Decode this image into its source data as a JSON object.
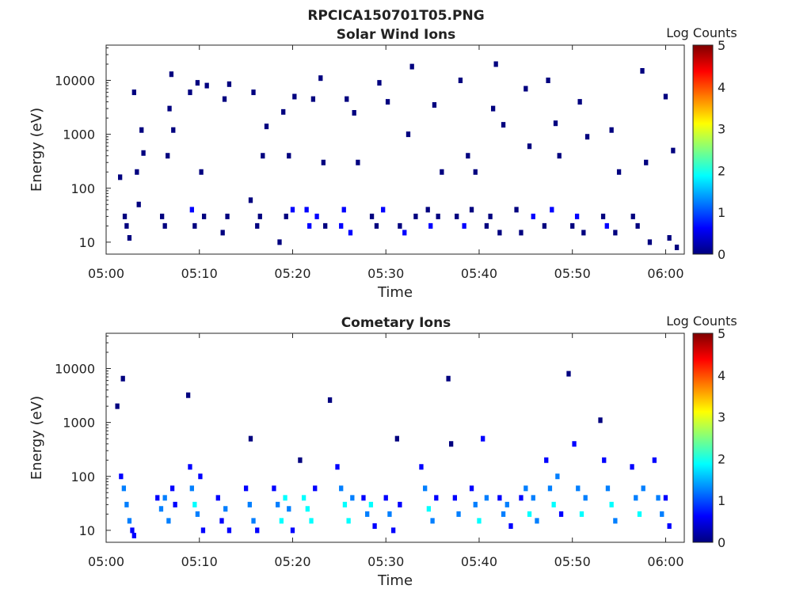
{
  "figure_title": "RPCICA150701T05.PNG",
  "colormap": [
    "#00007f",
    "#0000ff",
    "#007fff",
    "#00ffff",
    "#7fff7f",
    "#ffff00",
    "#ff7f00",
    "#ff0000",
    "#7f0000"
  ],
  "chart_data": [
    {
      "type": "heatmap",
      "title": "Solar Wind Ions",
      "xlabel": "Time",
      "ylabel": "Energy (eV)",
      "x_ticks": [
        "05:00",
        "05:10",
        "05:20",
        "05:30",
        "05:40",
        "05:50",
        "06:00"
      ],
      "x_range_minutes": [
        0,
        62
      ],
      "y_scale": "log",
      "y_ticks": [
        "10",
        "100",
        "1000",
        "10000"
      ],
      "ylim": [
        6,
        45000
      ],
      "colorbar_label": "Log Counts",
      "colorbar_ticks": [
        "0",
        "1",
        "2",
        "3",
        "4",
        "5"
      ],
      "zlim": [
        0,
        5
      ],
      "cells": [
        [
          1.5,
          160,
          0.1
        ],
        [
          2.0,
          30,
          0.2
        ],
        [
          2.2,
          20,
          0.1
        ],
        [
          2.5,
          12,
          0.1
        ],
        [
          3.0,
          6000,
          0.1
        ],
        [
          3.3,
          200,
          0.1
        ],
        [
          3.5,
          50,
          0.1
        ],
        [
          3.8,
          1200,
          0.1
        ],
        [
          4.0,
          450,
          0.1
        ],
        [
          6.0,
          30,
          0.3
        ],
        [
          6.3,
          20,
          0.2
        ],
        [
          6.6,
          400,
          0.1
        ],
        [
          6.8,
          3000,
          0.1
        ],
        [
          7.0,
          13000,
          0.1
        ],
        [
          7.2,
          1200,
          0.1
        ],
        [
          9.0,
          6000,
          0.1
        ],
        [
          9.2,
          40,
          0.4
        ],
        [
          9.5,
          20,
          0.3
        ],
        [
          9.8,
          9000,
          0.1
        ],
        [
          10.2,
          200,
          0.1
        ],
        [
          10.5,
          30,
          0.2
        ],
        [
          10.8,
          8000,
          0.1
        ],
        [
          12.5,
          15,
          0.2
        ],
        [
          12.7,
          4500,
          0.1
        ],
        [
          13.0,
          30,
          0.3
        ],
        [
          13.2,
          8500,
          0.1
        ],
        [
          15.5,
          60,
          0.1
        ],
        [
          15.8,
          6000,
          0.1
        ],
        [
          16.2,
          20,
          0.2
        ],
        [
          16.5,
          30,
          0.3
        ],
        [
          16.8,
          400,
          0.1
        ],
        [
          17.2,
          1400,
          0.1
        ],
        [
          18.6,
          10,
          0.2
        ],
        [
          19.0,
          2600,
          0.1
        ],
        [
          19.3,
          30,
          0.3
        ],
        [
          19.6,
          400,
          0.1
        ],
        [
          20.0,
          40,
          0.4
        ],
        [
          20.2,
          5000,
          0.1
        ],
        [
          21.5,
          40,
          0.5
        ],
        [
          21.8,
          20,
          0.4
        ],
        [
          22.2,
          4500,
          0.1
        ],
        [
          22.6,
          30,
          0.6
        ],
        [
          23.0,
          11000,
          0.1
        ],
        [
          23.3,
          300,
          0.1
        ],
        [
          23.5,
          20,
          0.3
        ],
        [
          25.2,
          20,
          0.5
        ],
        [
          25.5,
          40,
          0.6
        ],
        [
          25.8,
          4500,
          0.1
        ],
        [
          26.2,
          15,
          0.5
        ],
        [
          26.6,
          2500,
          0.1
        ],
        [
          27.0,
          300,
          0.1
        ],
        [
          28.5,
          30,
          0.2
        ],
        [
          29.0,
          20,
          0.2
        ],
        [
          29.3,
          9000,
          0.1
        ],
        [
          29.7,
          40,
          0.5
        ],
        [
          30.2,
          4000,
          0.1
        ],
        [
          31.5,
          20,
          0.3
        ],
        [
          32.0,
          15,
          0.4
        ],
        [
          32.4,
          1000,
          0.1
        ],
        [
          32.8,
          18000,
          0.1
        ],
        [
          33.2,
          30,
          0.2
        ],
        [
          34.5,
          40,
          0.3
        ],
        [
          34.8,
          20,
          0.4
        ],
        [
          35.2,
          3500,
          0.1
        ],
        [
          35.6,
          30,
          0.2
        ],
        [
          36.0,
          200,
          0.1
        ],
        [
          37.6,
          30,
          0.2
        ],
        [
          38.0,
          10000,
          0.1
        ],
        [
          38.4,
          20,
          0.4
        ],
        [
          38.8,
          400,
          0.1
        ],
        [
          39.2,
          40,
          0.3
        ],
        [
          39.6,
          200,
          0.1
        ],
        [
          40.8,
          20,
          0.2
        ],
        [
          41.2,
          30,
          0.3
        ],
        [
          41.5,
          3000,
          0.1
        ],
        [
          41.8,
          20000,
          0.1
        ],
        [
          42.2,
          15,
          0.2
        ],
        [
          42.6,
          1500,
          0.1
        ],
        [
          44.0,
          40,
          0.2
        ],
        [
          44.5,
          15,
          0.3
        ],
        [
          45.0,
          7000,
          0.1
        ],
        [
          45.4,
          600,
          0.1
        ],
        [
          45.8,
          30,
          0.4
        ],
        [
          47.0,
          20,
          0.3
        ],
        [
          47.4,
          10000,
          0.1
        ],
        [
          47.8,
          40,
          0.5
        ],
        [
          48.2,
          1600,
          0.1
        ],
        [
          48.6,
          400,
          0.1
        ],
        [
          50.0,
          20,
          0.3
        ],
        [
          50.5,
          30,
          0.4
        ],
        [
          50.8,
          4000,
          0.1
        ],
        [
          51.2,
          15,
          0.3
        ],
        [
          51.6,
          900,
          0.1
        ],
        [
          53.3,
          30,
          0.3
        ],
        [
          53.7,
          20,
          0.5
        ],
        [
          54.2,
          1200,
          0.1
        ],
        [
          54.6,
          15,
          0.2
        ],
        [
          55.0,
          200,
          0.1
        ],
        [
          56.5,
          30,
          0.3
        ],
        [
          57.0,
          20,
          0.2
        ],
        [
          57.5,
          15000,
          0.1
        ],
        [
          57.9,
          300,
          0.1
        ],
        [
          58.3,
          10,
          0.2
        ],
        [
          60.0,
          5000,
          0.1
        ],
        [
          60.4,
          12,
          0.2
        ],
        [
          60.8,
          500,
          0.1
        ],
        [
          61.2,
          8,
          0.1
        ]
      ]
    },
    {
      "type": "heatmap",
      "title": "Cometary Ions",
      "xlabel": "Time",
      "ylabel": "Energy (eV)",
      "x_ticks": [
        "05:00",
        "05:10",
        "05:20",
        "05:30",
        "05:40",
        "05:50",
        "06:00"
      ],
      "x_range_minutes": [
        0,
        62
      ],
      "y_scale": "log",
      "y_ticks": [
        "10",
        "100",
        "1000",
        "10000"
      ],
      "ylim": [
        6,
        45000
      ],
      "colorbar_label": "Log Counts",
      "colorbar_ticks": [
        "0",
        "1",
        "2",
        "3",
        "4",
        "5"
      ],
      "zlim": [
        0,
        5
      ],
      "cells": [
        [
          1.2,
          2000,
          0.1
        ],
        [
          1.8,
          6500,
          0.1
        ],
        [
          1.6,
          100,
          0.4
        ],
        [
          1.9,
          60,
          1.0
        ],
        [
          2.2,
          30,
          1.4
        ],
        [
          2.5,
          15,
          1.0
        ],
        [
          2.8,
          10,
          0.8
        ],
        [
          3.0,
          8,
          0.5
        ],
        [
          5.5,
          40,
          0.6
        ],
        [
          5.9,
          25,
          1.2
        ],
        [
          6.3,
          40,
          1.5
        ],
        [
          6.7,
          15,
          1.0
        ],
        [
          7.1,
          60,
          0.8
        ],
        [
          7.4,
          30,
          0.5
        ],
        [
          8.8,
          3200,
          0.1
        ],
        [
          9.0,
          150,
          0.5
        ],
        [
          9.2,
          60,
          1.2
        ],
        [
          9.5,
          30,
          1.8
        ],
        [
          9.8,
          20,
          1.4
        ],
        [
          10.1,
          100,
          0.8
        ],
        [
          10.4,
          10,
          0.5
        ],
        [
          12.0,
          40,
          0.6
        ],
        [
          12.4,
          15,
          0.9
        ],
        [
          12.8,
          25,
          1.1
        ],
        [
          13.2,
          10,
          0.5
        ],
        [
          15.5,
          500,
          0.1
        ],
        [
          15.0,
          60,
          0.6
        ],
        [
          15.4,
          30,
          1.5
        ],
        [
          15.8,
          15,
          1.2
        ],
        [
          16.2,
          10,
          0.6
        ],
        [
          18.0,
          60,
          0.4
        ],
        [
          18.4,
          30,
          1.3
        ],
        [
          18.8,
          15,
          1.8
        ],
        [
          19.2,
          40,
          1.6
        ],
        [
          19.6,
          25,
          1.0
        ],
        [
          20.0,
          10,
          0.5
        ],
        [
          20.8,
          200,
          0.3
        ],
        [
          21.2,
          40,
          1.6
        ],
        [
          21.6,
          25,
          2.0
        ],
        [
          22.0,
          15,
          1.6
        ],
        [
          22.4,
          60,
          0.9
        ],
        [
          24.0,
          2600,
          0.1
        ],
        [
          24.8,
          150,
          0.5
        ],
        [
          25.2,
          60,
          1.3
        ],
        [
          25.6,
          30,
          2.1
        ],
        [
          26.0,
          15,
          1.8
        ],
        [
          26.4,
          40,
          1.1
        ],
        [
          27.6,
          40,
          0.6
        ],
        [
          28.0,
          20,
          1.4
        ],
        [
          28.4,
          30,
          1.9
        ],
        [
          28.8,
          12,
          0.8
        ],
        [
          30.0,
          40,
          0.5
        ],
        [
          30.4,
          20,
          1.2
        ],
        [
          30.8,
          10,
          0.9
        ],
        [
          31.2,
          500,
          0.1
        ],
        [
          31.5,
          30,
          0.8
        ],
        [
          33.8,
          150,
          0.4
        ],
        [
          34.2,
          60,
          1.0
        ],
        [
          34.6,
          25,
          1.8
        ],
        [
          35.0,
          15,
          1.5
        ],
        [
          35.4,
          40,
          0.8
        ],
        [
          36.7,
          6500,
          0.1
        ],
        [
          37.0,
          400,
          0.3
        ],
        [
          37.4,
          40,
          0.9
        ],
        [
          37.8,
          20,
          1.3
        ],
        [
          39.2,
          60,
          0.6
        ],
        [
          39.6,
          30,
          1.4
        ],
        [
          40.0,
          15,
          1.6
        ],
        [
          40.4,
          500,
          0.5
        ],
        [
          40.8,
          40,
          1.0
        ],
        [
          42.2,
          40,
          0.8
        ],
        [
          42.6,
          20,
          1.3
        ],
        [
          43.0,
          30,
          1.1
        ],
        [
          43.4,
          12,
          0.7
        ],
        [
          44.5,
          40,
          0.9
        ],
        [
          45.0,
          60,
          1.2
        ],
        [
          45.4,
          20,
          1.7
        ],
        [
          45.8,
          40,
          1.5
        ],
        [
          46.2,
          15,
          1.0
        ],
        [
          47.2,
          200,
          0.5
        ],
        [
          47.6,
          60,
          1.4
        ],
        [
          48.0,
          30,
          1.9
        ],
        [
          48.4,
          100,
          1.0
        ],
        [
          48.8,
          20,
          0.8
        ],
        [
          49.6,
          8000,
          0.1
        ],
        [
          50.2,
          400,
          0.4
        ],
        [
          50.6,
          60,
          1.3
        ],
        [
          51.0,
          20,
          1.8
        ],
        [
          51.4,
          40,
          1.5
        ],
        [
          53.0,
          1100,
          0.1
        ],
        [
          53.4,
          200,
          0.5
        ],
        [
          53.8,
          60,
          1.2
        ],
        [
          54.2,
          30,
          1.8
        ],
        [
          54.6,
          15,
          1.1
        ],
        [
          56.4,
          150,
          0.5
        ],
        [
          56.8,
          40,
          1.3
        ],
        [
          57.2,
          20,
          1.7
        ],
        [
          57.6,
          60,
          1.0
        ],
        [
          58.8,
          200,
          0.4
        ],
        [
          59.2,
          40,
          1.1
        ],
        [
          59.6,
          20,
          1.4
        ],
        [
          60.0,
          40,
          0.9
        ],
        [
          60.4,
          12,
          0.6
        ]
      ]
    }
  ]
}
